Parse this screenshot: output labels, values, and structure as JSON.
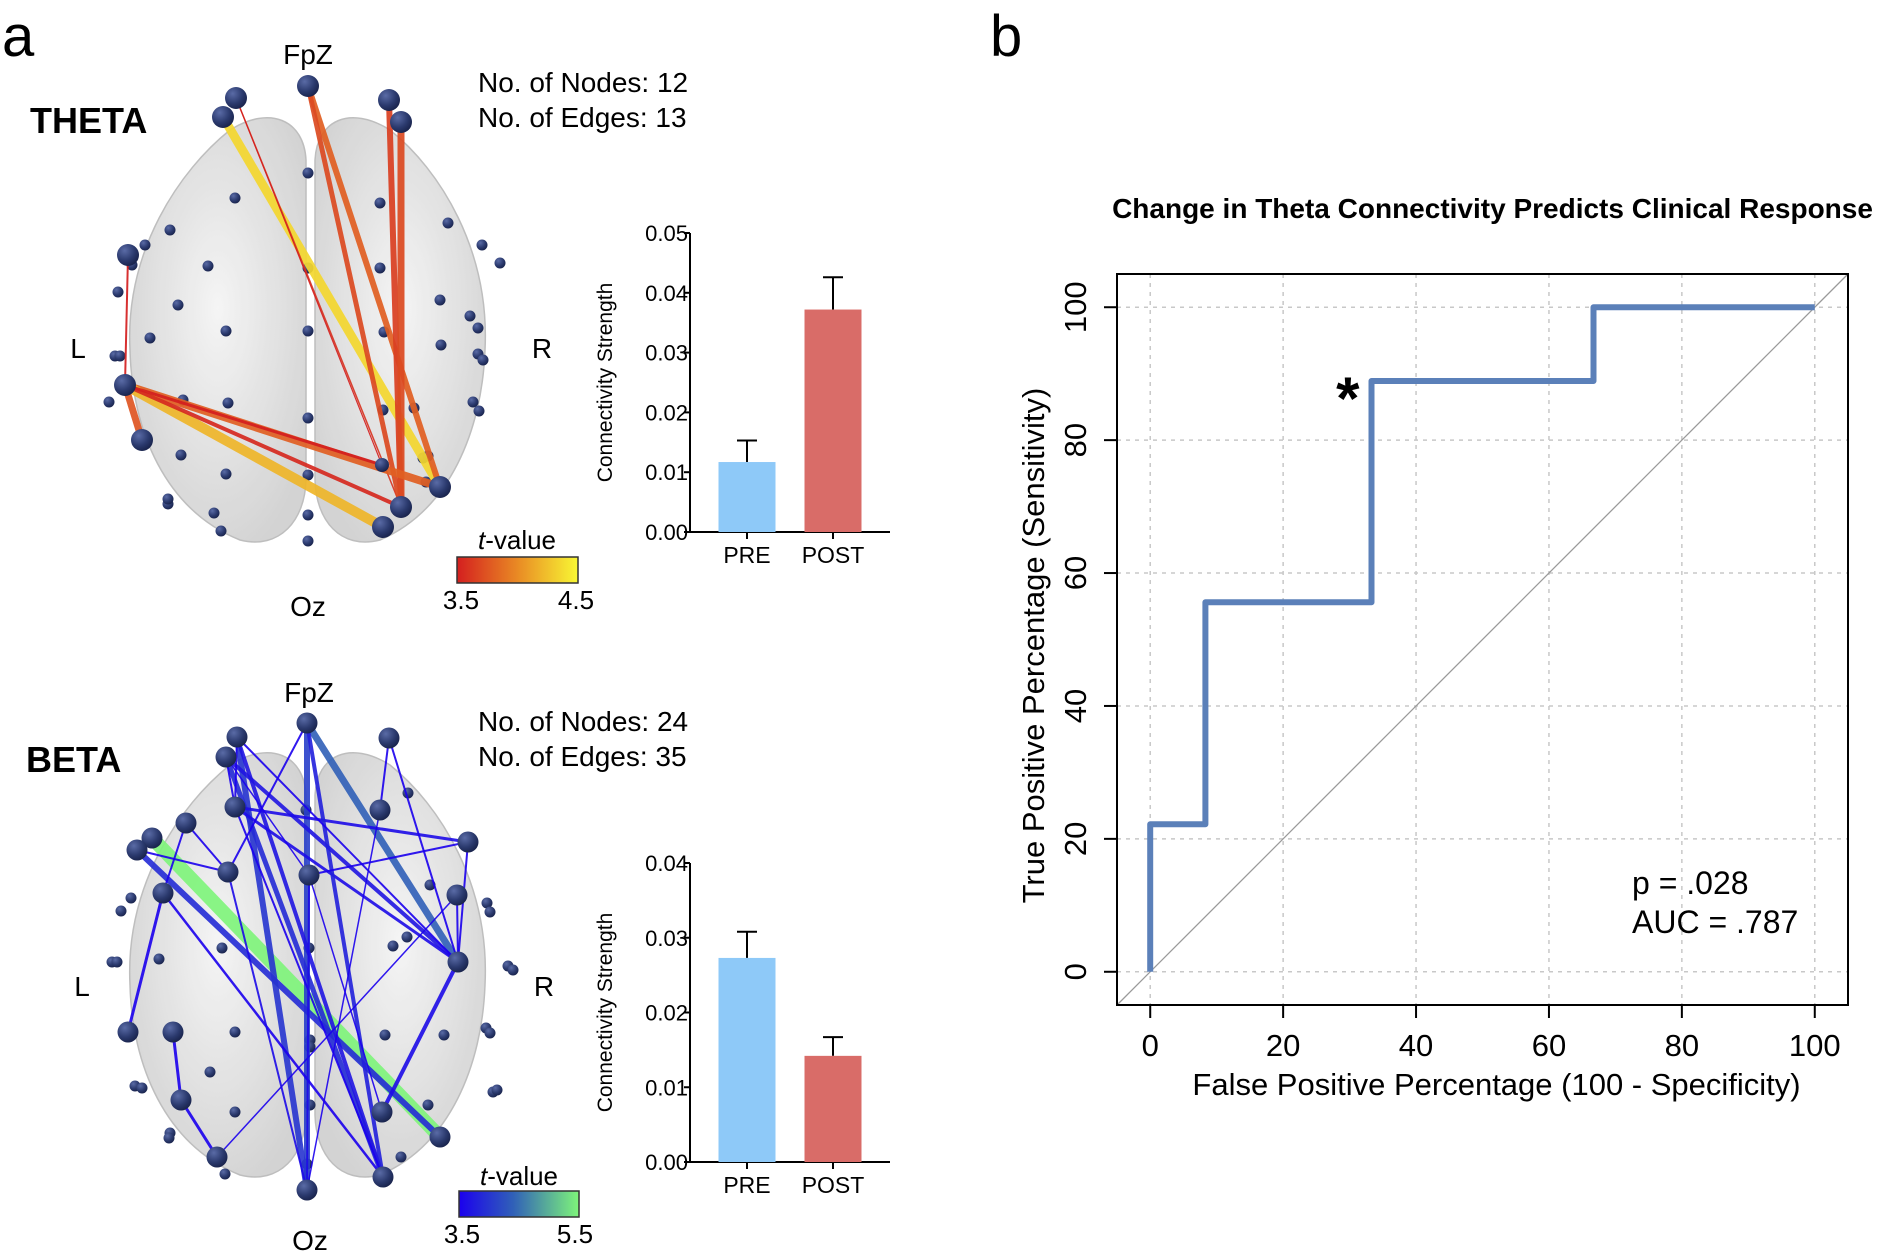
{
  "panel_labels": {
    "a": "a",
    "b": "b"
  },
  "colors": {
    "node": "#2b3a6e",
    "brain": "#d9d9d9",
    "pre_bar": "#8ec9f8",
    "post_bar": "#d96c68",
    "roc_line": "#5b80b9",
    "theta_scale_low": "#d41f1f",
    "theta_scale_mid": "#e98a24",
    "theta_scale_high": "#f8f834",
    "beta_scale_low": "#1b00ee",
    "beta_scale_mid": "#3060b8",
    "beta_scale_high": "#7ef57a"
  },
  "panel_a": {
    "electrode_labels": {
      "front": "FpZ",
      "back": "Oz",
      "left": "L",
      "right": "R"
    },
    "theta": {
      "title": "THETA",
      "nodes_label": "No. of Nodes: 12",
      "edges_label": "No. of Edges: 13",
      "num_nodes": 12,
      "num_edges": 13,
      "colorbar": {
        "title_italic": "t",
        "title_rest": "-value",
        "min_label": "3.5",
        "max_label": "4.5",
        "min": 3.5,
        "max": 4.5
      }
    },
    "beta": {
      "title": "BETA",
      "nodes_label": "No. of Nodes: 24",
      "edges_label": "No. of Edges: 35",
      "num_nodes": 24,
      "num_edges": 35,
      "colorbar": {
        "title_italic": "t",
        "title_rest": "-value",
        "min_label": "3.5",
        "max_label": "5.5",
        "min": 3.5,
        "max": 5.5
      }
    }
  },
  "chart_data": [
    {
      "id": "theta-bars",
      "type": "bar",
      "title": "",
      "xlabel": "",
      "ylabel": "Connectivity Strength",
      "categories": [
        "PRE",
        "POST"
      ],
      "values": [
        0.0117,
        0.0372
      ],
      "error_upper": [
        0.0153,
        0.0426
      ],
      "ylim": [
        0,
        0.05
      ],
      "yticks": [
        0.0,
        0.01,
        0.02,
        0.03,
        0.04,
        0.05
      ],
      "ytick_labels": [
        "0.00",
        "0.01",
        "0.02",
        "0.03",
        "0.04",
        "0.05"
      ],
      "bar_colors": [
        "#8ec9f8",
        "#d96c68"
      ],
      "grid": false
    },
    {
      "id": "beta-bars",
      "type": "bar",
      "title": "",
      "xlabel": "",
      "ylabel": "Connectivity Strength",
      "categories": [
        "PRE",
        "POST"
      ],
      "values": [
        0.0273,
        0.0142
      ],
      "error_upper": [
        0.0308,
        0.0167
      ],
      "ylim": [
        0,
        0.04
      ],
      "yticks": [
        0.0,
        0.01,
        0.02,
        0.03,
        0.04
      ],
      "ytick_labels": [
        "0.00",
        "0.01",
        "0.02",
        "0.03",
        "0.04"
      ],
      "bar_colors": [
        "#8ec9f8",
        "#d96c68"
      ],
      "grid": false
    },
    {
      "id": "roc",
      "type": "line",
      "title": "Change in Theta Connectivity Predicts Clinical Response",
      "xlabel": "False Positive Percentage (100 - Specificity)",
      "ylabel": "True Positive Percentage (Sensitivity)",
      "xlim": [
        -5,
        105
      ],
      "ylim": [
        -5,
        105
      ],
      "xticks": [
        0,
        20,
        40,
        60,
        80,
        100
      ],
      "yticks": [
        0,
        20,
        40,
        60,
        80,
        100
      ],
      "xtick_labels": [
        "0",
        "20",
        "40",
        "60",
        "80",
        "100"
      ],
      "ytick_labels": [
        "0",
        "20",
        "40",
        "60",
        "80",
        "100"
      ],
      "grid": true,
      "series": [
        {
          "name": "ROC",
          "x": [
            0,
            0,
            8.3,
            8.3,
            33.3,
            33.3,
            66.7,
            66.7,
            100
          ],
          "y": [
            0,
            22.2,
            22.2,
            55.6,
            55.6,
            88.9,
            88.9,
            100,
            100
          ]
        },
        {
          "name": "chance",
          "x": [
            -5,
            105
          ],
          "y": [
            -5,
            105
          ]
        }
      ],
      "marker": {
        "label": "*",
        "x": 33.3,
        "y": 88.9
      },
      "annotations": [
        "p = .028",
        "AUC = .787"
      ]
    }
  ]
}
